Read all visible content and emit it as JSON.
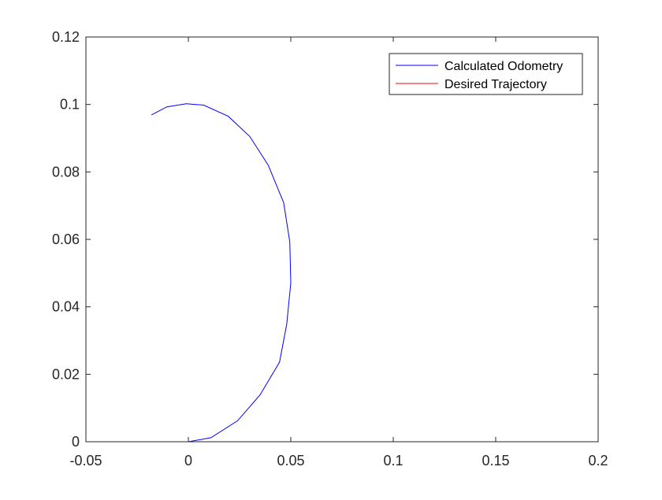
{
  "chart_data": {
    "type": "line",
    "xlim": [
      -0.05,
      0.2
    ],
    "ylim": [
      0,
      0.12
    ],
    "xticks": [
      -0.05,
      0,
      0.05,
      0.1,
      0.15,
      0.2
    ],
    "xtick_labels": [
      "-0.05",
      "0",
      "0.05",
      "0.1",
      "0.15",
      "0.2"
    ],
    "yticks": [
      0,
      0.02,
      0.04,
      0.06,
      0.08,
      0.1,
      0.12
    ],
    "ytick_labels": [
      "0",
      "0.02",
      "0.04",
      "0.06",
      "0.08",
      "0.1",
      "0.12"
    ],
    "grid": false,
    "legend_position": "top-right",
    "series": [
      {
        "name": "Calculated Odometry",
        "color": "#0000ff",
        "x": [
          0,
          0.011,
          0.024,
          0.035,
          0.0445,
          0.048,
          0.05,
          0.0495,
          0.0465,
          0.039,
          0.03,
          0.0195,
          0.0075,
          -0.001,
          -0.0105,
          -0.018
        ],
        "y": [
          0,
          0.0012,
          0.0062,
          0.0139,
          0.0236,
          0.0348,
          0.0471,
          0.0593,
          0.0709,
          0.082,
          0.0905,
          0.0965,
          0.0998,
          0.1002,
          0.0993,
          0.0969
        ]
      },
      {
        "name": "Desired Trajectory",
        "color": "#ff0000",
        "x": [
          0,
          0.176
        ],
        "y": [
          0,
          0
        ]
      }
    ]
  }
}
